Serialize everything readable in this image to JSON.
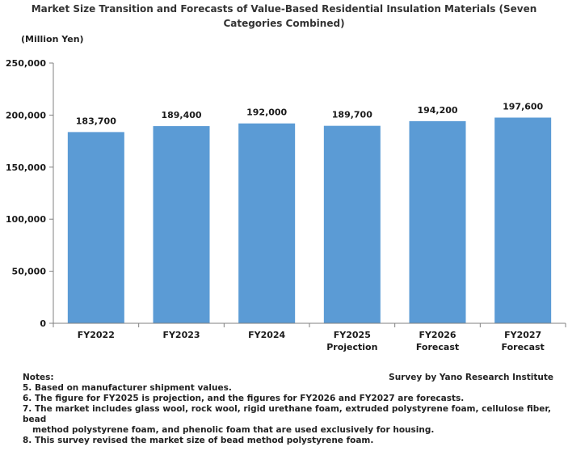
{
  "title": "Market Size Transition and Forecasts of Value-Based Residential Insulation Materials (Seven Categories Combined)",
  "unit_label": "(Million Yen)",
  "source": "Survey by Yano Research Institute",
  "notes": {
    "heading": "Notes:",
    "items": [
      "5. Based on manufacturer shipment values.",
      "6. The figure for FY2025 is projection, and the figures for FY2026 and FY2027 are forecasts.",
      "7. The market includes glass wool, rock wool, rigid urethane foam, extruded polystyrene foam, cellulose fiber, bead",
      "method polystyrene foam, and phenolic foam that are used exclusively for housing.",
      "8. This survey revised the market size of bead method polystyrene foam."
    ]
  },
  "colors": {
    "bar": "#5b9bd5",
    "axis": "#808080",
    "text": "#1a1a1a"
  },
  "chart_data": {
    "type": "bar",
    "categories": [
      "FY2022",
      "FY2023",
      "FY2024",
      "FY2025",
      "FY2026",
      "FY2027"
    ],
    "category_sublabels": [
      "",
      "",
      "",
      "Projection",
      "Forecast",
      "Forecast"
    ],
    "values": [
      183700,
      189400,
      192000,
      189700,
      194200,
      197600
    ],
    "value_labels": [
      "183,700",
      "189,400",
      "192,000",
      "189,700",
      "194,200",
      "197,600"
    ],
    "ylim": [
      0,
      250000
    ],
    "yticks": [
      0,
      50000,
      100000,
      150000,
      200000,
      250000
    ],
    "ytick_labels": [
      "0",
      "50,000",
      "100,000",
      "150,000",
      "200,000",
      "250,000"
    ],
    "grid": false,
    "legend": "none"
  }
}
